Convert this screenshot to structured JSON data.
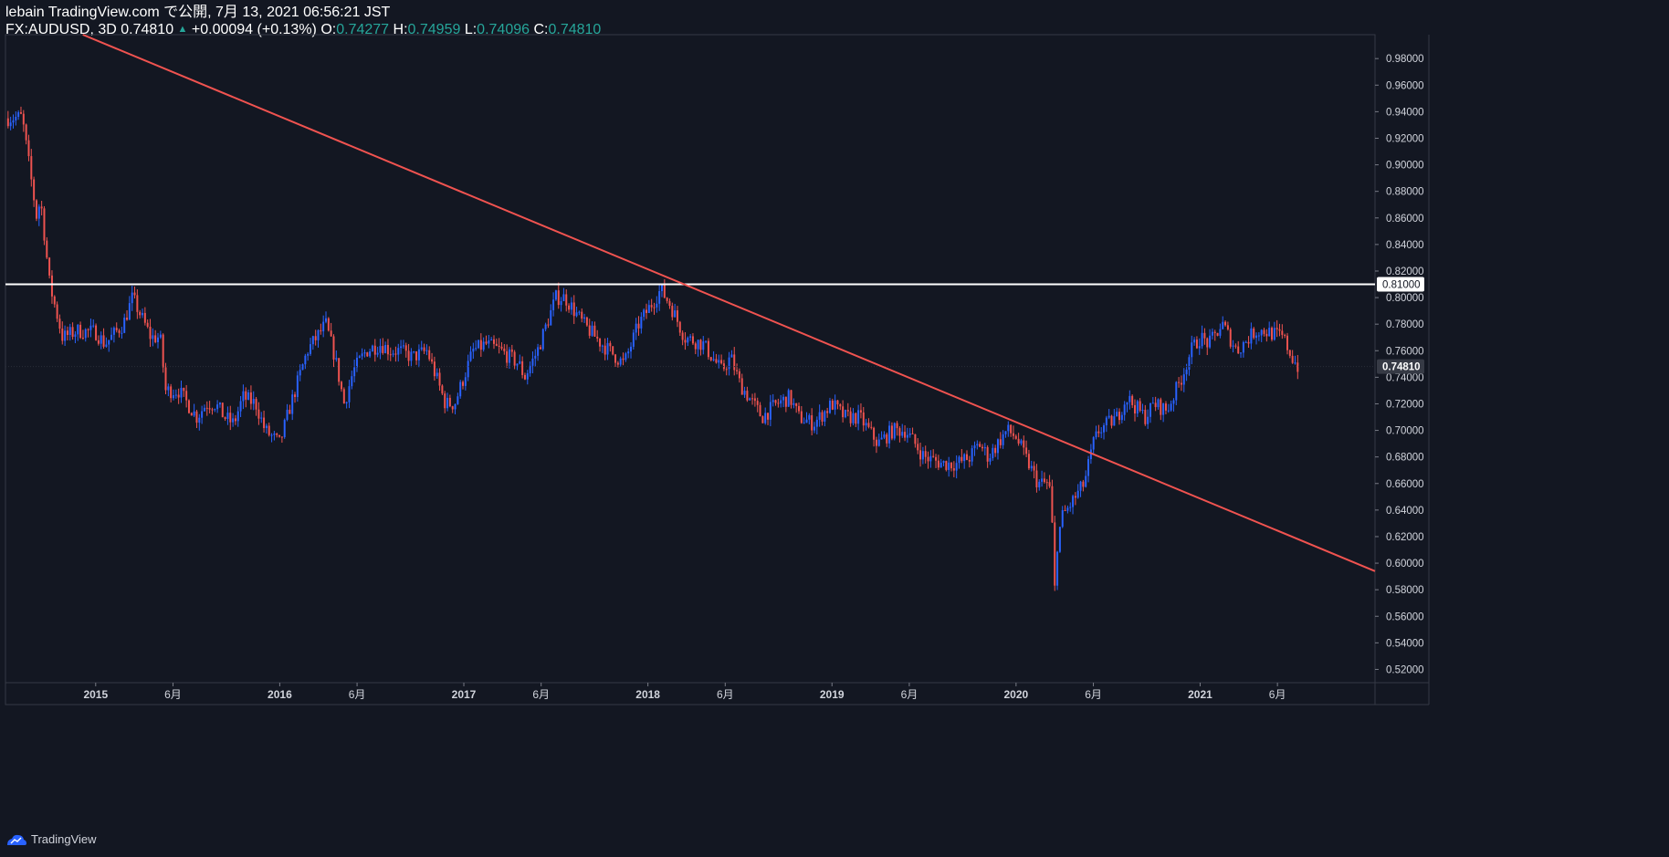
{
  "header": {
    "published": "lebain TradingView.com で公開, 7月 13, 2021 06:56:21 JST",
    "symbol": "FX:AUDUSD, 3D",
    "last": "0.74810",
    "change": "+0.00094 (+0.13%)",
    "open_label": "O:",
    "open": "0.74277",
    "high_label": "H:",
    "high": "0.74959",
    "low_label": "L:",
    "low": "0.74096",
    "close_label": "C:",
    "close": "0.74810"
  },
  "footer": {
    "brand": "TradingView",
    "icon": "tradingview-logo-icon"
  },
  "colors": {
    "background": "#131722",
    "up": "#2962ff",
    "down": "#ef5350",
    "trendline": "#f05350",
    "hline": "#ffffff",
    "axis_text": "#d1d4dc",
    "price_tag_bg": "#363a45"
  },
  "chart_data": {
    "type": "candlestick",
    "title": "FX:AUDUSD, 3D",
    "ylim": [
      0.51,
      0.998
    ],
    "y_ticks": [
      "0.52000",
      "0.54000",
      "0.56000",
      "0.58000",
      "0.60000",
      "0.62000",
      "0.64000",
      "0.66000",
      "0.68000",
      "0.70000",
      "0.72000",
      "0.74000",
      "0.76000",
      "0.78000",
      "0.80000",
      "0.82000",
      "0.84000",
      "0.86000",
      "0.88000",
      "0.90000",
      "0.92000",
      "0.94000",
      "0.96000",
      "0.98000"
    ],
    "x_ticks": [
      {
        "label": "2015",
        "t": 2015.0
      },
      {
        "label": "6月",
        "t": 2015.42
      },
      {
        "label": "2016",
        "t": 2016.0
      },
      {
        "label": "6月",
        "t": 2016.42
      },
      {
        "label": "2017",
        "t": 2017.0
      },
      {
        "label": "6月",
        "t": 2017.42
      },
      {
        "label": "2018",
        "t": 2018.0
      },
      {
        "label": "6月",
        "t": 2018.42
      },
      {
        "label": "2019",
        "t": 2019.0
      },
      {
        "label": "6月",
        "t": 2019.42
      },
      {
        "label": "2020",
        "t": 2020.0
      },
      {
        "label": "6月",
        "t": 2020.42
      },
      {
        "label": "2021",
        "t": 2021.0
      },
      {
        "label": "6月",
        "t": 2021.42
      }
    ],
    "xlim": [
      2014.51,
      2021.95
    ],
    "series": [
      {
        "time": [
          2014.51,
          2014.6,
          2014.68,
          2014.7,
          2014.75,
          2014.82,
          2014.9,
          2015.0,
          2015.05,
          2015.15,
          2015.2,
          2015.3,
          2015.35,
          2015.38,
          2015.45,
          2015.55,
          2015.6,
          2015.65,
          2015.7,
          2015.75,
          2015.8,
          2015.87,
          2015.92,
          2016.0,
          2016.05,
          2016.15,
          2016.25,
          2016.3,
          2016.35,
          2016.37,
          2016.4,
          2016.47,
          2016.55,
          2016.6,
          2016.65,
          2016.72,
          2016.8,
          2016.9,
          2016.95,
          2017.0,
          2017.05,
          2017.12,
          2017.2,
          2017.3,
          2017.33,
          2017.4,
          2017.5,
          2017.55,
          2017.65,
          2017.75,
          2017.87,
          2017.95,
          2018.07,
          2018.12,
          2018.2,
          2018.3,
          2018.4,
          2018.45,
          2018.5,
          2018.62,
          2018.7,
          2018.77,
          2018.82,
          2018.9,
          2019.0,
          2019.07,
          2019.15,
          2019.25,
          2019.33,
          2019.4,
          2019.5,
          2019.6,
          2019.68,
          2019.75,
          2019.8,
          2019.85,
          2019.95,
          2020.0,
          2020.05,
          2020.12,
          2020.18,
          2020.2,
          2020.21,
          2020.22,
          2020.23,
          2020.25,
          2020.3,
          2020.37,
          2020.42,
          2020.45,
          2020.55,
          2020.6,
          2020.7,
          2020.75,
          2020.82,
          2020.9,
          2020.95,
          2021.0,
          2021.05,
          2021.12,
          2021.2,
          2021.3,
          2021.35,
          2021.45,
          2021.5,
          2021.53
        ],
        "close": [
          0.935,
          0.936,
          0.86,
          0.875,
          0.81,
          0.77,
          0.775,
          0.774,
          0.765,
          0.78,
          0.8,
          0.77,
          0.77,
          0.73,
          0.73,
          0.71,
          0.72,
          0.72,
          0.71,
          0.705,
          0.725,
          0.72,
          0.7,
          0.69,
          0.715,
          0.76,
          0.78,
          0.755,
          0.72,
          0.73,
          0.745,
          0.76,
          0.765,
          0.76,
          0.76,
          0.755,
          0.76,
          0.72,
          0.72,
          0.74,
          0.76,
          0.765,
          0.76,
          0.75,
          0.74,
          0.76,
          0.8,
          0.8,
          0.78,
          0.765,
          0.75,
          0.78,
          0.806,
          0.795,
          0.77,
          0.765,
          0.745,
          0.755,
          0.735,
          0.71,
          0.72,
          0.725,
          0.71,
          0.705,
          0.72,
          0.71,
          0.71,
          0.69,
          0.7,
          0.7,
          0.68,
          0.675,
          0.675,
          0.68,
          0.69,
          0.68,
          0.7,
          0.695,
          0.68,
          0.66,
          0.66,
          0.62,
          0.58,
          0.61,
          0.62,
          0.635,
          0.645,
          0.66,
          0.69,
          0.7,
          0.71,
          0.725,
          0.71,
          0.72,
          0.715,
          0.74,
          0.76,
          0.77,
          0.765,
          0.78,
          0.76,
          0.775,
          0.775,
          0.77,
          0.755,
          0.748
        ]
      }
    ],
    "horizontal_line": {
      "price": 0.81,
      "label": "0.81000"
    },
    "trendline": {
      "t1": 2014.93,
      "p1": 0.998,
      "t2": 2021.95,
      "p2": 0.594
    },
    "last_price": {
      "price": 0.7481,
      "label": "0.74810"
    },
    "grid": false
  }
}
